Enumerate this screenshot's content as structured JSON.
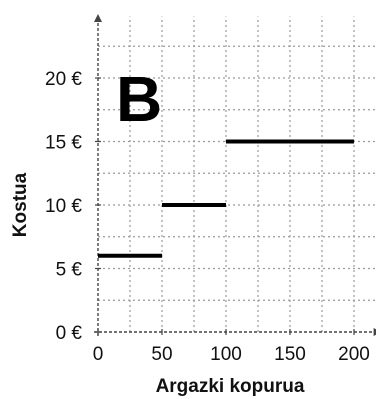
{
  "chart_data": {
    "type": "line",
    "panel_label": "B",
    "xlabel": "Argazki kopurua",
    "ylabel": "Kostua",
    "xlim": [
      0,
      220
    ],
    "ylim": [
      0,
      25
    ],
    "x_ticks": [
      0,
      50,
      100,
      150,
      200
    ],
    "x_tick_labels": [
      "0",
      "50",
      "100",
      "150",
      "200"
    ],
    "y_ticks": [
      0,
      5,
      10,
      15,
      20
    ],
    "y_tick_labels": [
      "0 €",
      "5 €",
      "10 €",
      "15 €",
      "20 €"
    ],
    "grid": true,
    "grid_style": "dotted",
    "segments": [
      {
        "x": [
          0,
          50
        ],
        "y": [
          6,
          6
        ]
      },
      {
        "x": [
          50,
          100
        ],
        "y": [
          10,
          10
        ]
      },
      {
        "x": [
          100,
          200
        ],
        "y": [
          15,
          15
        ]
      }
    ],
    "colors": {
      "line": "#000000",
      "grid": "#9a9a9a",
      "axis": "#444444"
    }
  }
}
